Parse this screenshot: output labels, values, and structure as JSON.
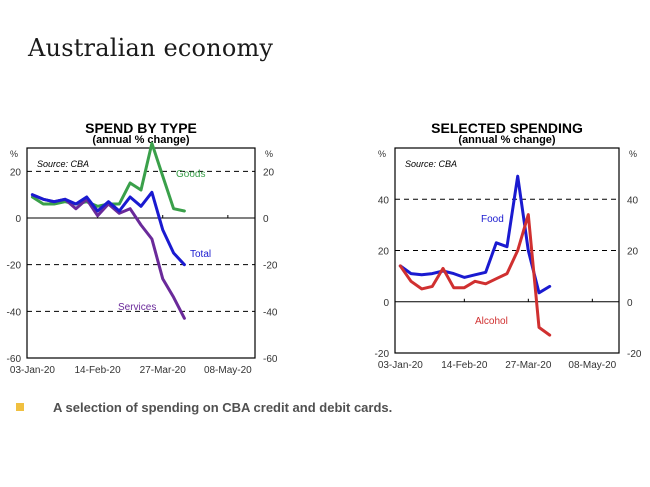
{
  "page": {
    "title": "Australian economy",
    "footer_text": "A selection of spending on CBA credit and debit cards.",
    "bullet_color": "#f0c040"
  },
  "chart_data": [
    {
      "type": "line",
      "title": "SPEND BY TYPE",
      "subtitle": "(annual % change)",
      "source": "Source: CBA",
      "unit_left": "%",
      "unit_right": "%",
      "ylim": [
        -60,
        30
      ],
      "yticks": [
        20,
        0,
        -20,
        -40,
        -60
      ],
      "ytick_labels": [
        "20",
        "0",
        "-20",
        "-40",
        "-60"
      ],
      "dashed_gridlines": [
        20,
        -20,
        -40
      ],
      "xtick_labels": [
        "03-Jan-20",
        "14-Feb-20",
        "27-Mar-20",
        "08-May-20"
      ],
      "xtick_weeks": [
        0,
        6,
        12,
        18
      ],
      "xlim_weeks": [
        -0.5,
        20.5
      ],
      "x_weeks": [
        0,
        1,
        2,
        3,
        4,
        5,
        6,
        7,
        8,
        9,
        10,
        11,
        12,
        13,
        14,
        15
      ],
      "series": [
        {
          "name": "Goods",
          "color": "#3aa04a",
          "values": [
            9,
            6,
            6,
            7,
            6,
            7,
            5,
            6,
            6,
            15,
            12,
            32,
            18,
            4,
            3,
            null
          ]
        },
        {
          "name": "Services",
          "color": "#6a2a9a",
          "values": [
            10,
            8,
            7,
            8,
            4,
            8,
            1,
            6,
            2,
            4,
            -3,
            -9,
            -26,
            -34,
            -43,
            null
          ]
        },
        {
          "name": "Total",
          "color": "#1a1ad0",
          "values": [
            10,
            8,
            7,
            8,
            6,
            9,
            3,
            7,
            3,
            9,
            5,
            11,
            -5,
            -15,
            -20,
            null
          ]
        }
      ],
      "legend_labels": [
        {
          "name": "Goods",
          "color": "#3aa04a"
        },
        {
          "name": "Total",
          "color": "#1a1ad0"
        },
        {
          "name": "Services",
          "color": "#6a2a9a"
        }
      ]
    },
    {
      "type": "line",
      "title": "SELECTED  SPENDING",
      "subtitle": "(annual % change)",
      "source": "Source: CBA",
      "unit_left": "%",
      "unit_right": "%",
      "ylim": [
        -20,
        60
      ],
      "yticks": [
        40,
        20,
        0,
        -20
      ],
      "ytick_labels": [
        "40",
        "20",
        "0",
        "-20"
      ],
      "dashed_gridlines": [
        40,
        20
      ],
      "xtick_labels": [
        "03-Jan-20",
        "14-Feb-20",
        "27-Mar-20",
        "08-May-20"
      ],
      "xtick_weeks": [
        0,
        6,
        12,
        18
      ],
      "xlim_weeks": [
        -0.5,
        20.5
      ],
      "x_weeks": [
        0,
        1,
        2,
        3,
        4,
        5,
        6,
        7,
        8,
        9,
        10,
        11,
        12,
        13,
        14,
        15
      ],
      "series": [
        {
          "name": "Food",
          "color": "#1a1ad0",
          "values": [
            14,
            11,
            10.5,
            11,
            12,
            11,
            9.5,
            10.5,
            11.5,
            23,
            21.5,
            49,
            20,
            3.5,
            6,
            null
          ]
        },
        {
          "name": "Alcohol",
          "color": "#d03030",
          "values": [
            14,
            8,
            5,
            6,
            13,
            5.5,
            5.5,
            8,
            7,
            9,
            11,
            20,
            34,
            -10,
            -13,
            null
          ]
        }
      ],
      "legend_labels": [
        {
          "name": "Food",
          "color": "#1a1ad0"
        },
        {
          "name": "Alcohol",
          "color": "#d03030"
        }
      ]
    }
  ]
}
